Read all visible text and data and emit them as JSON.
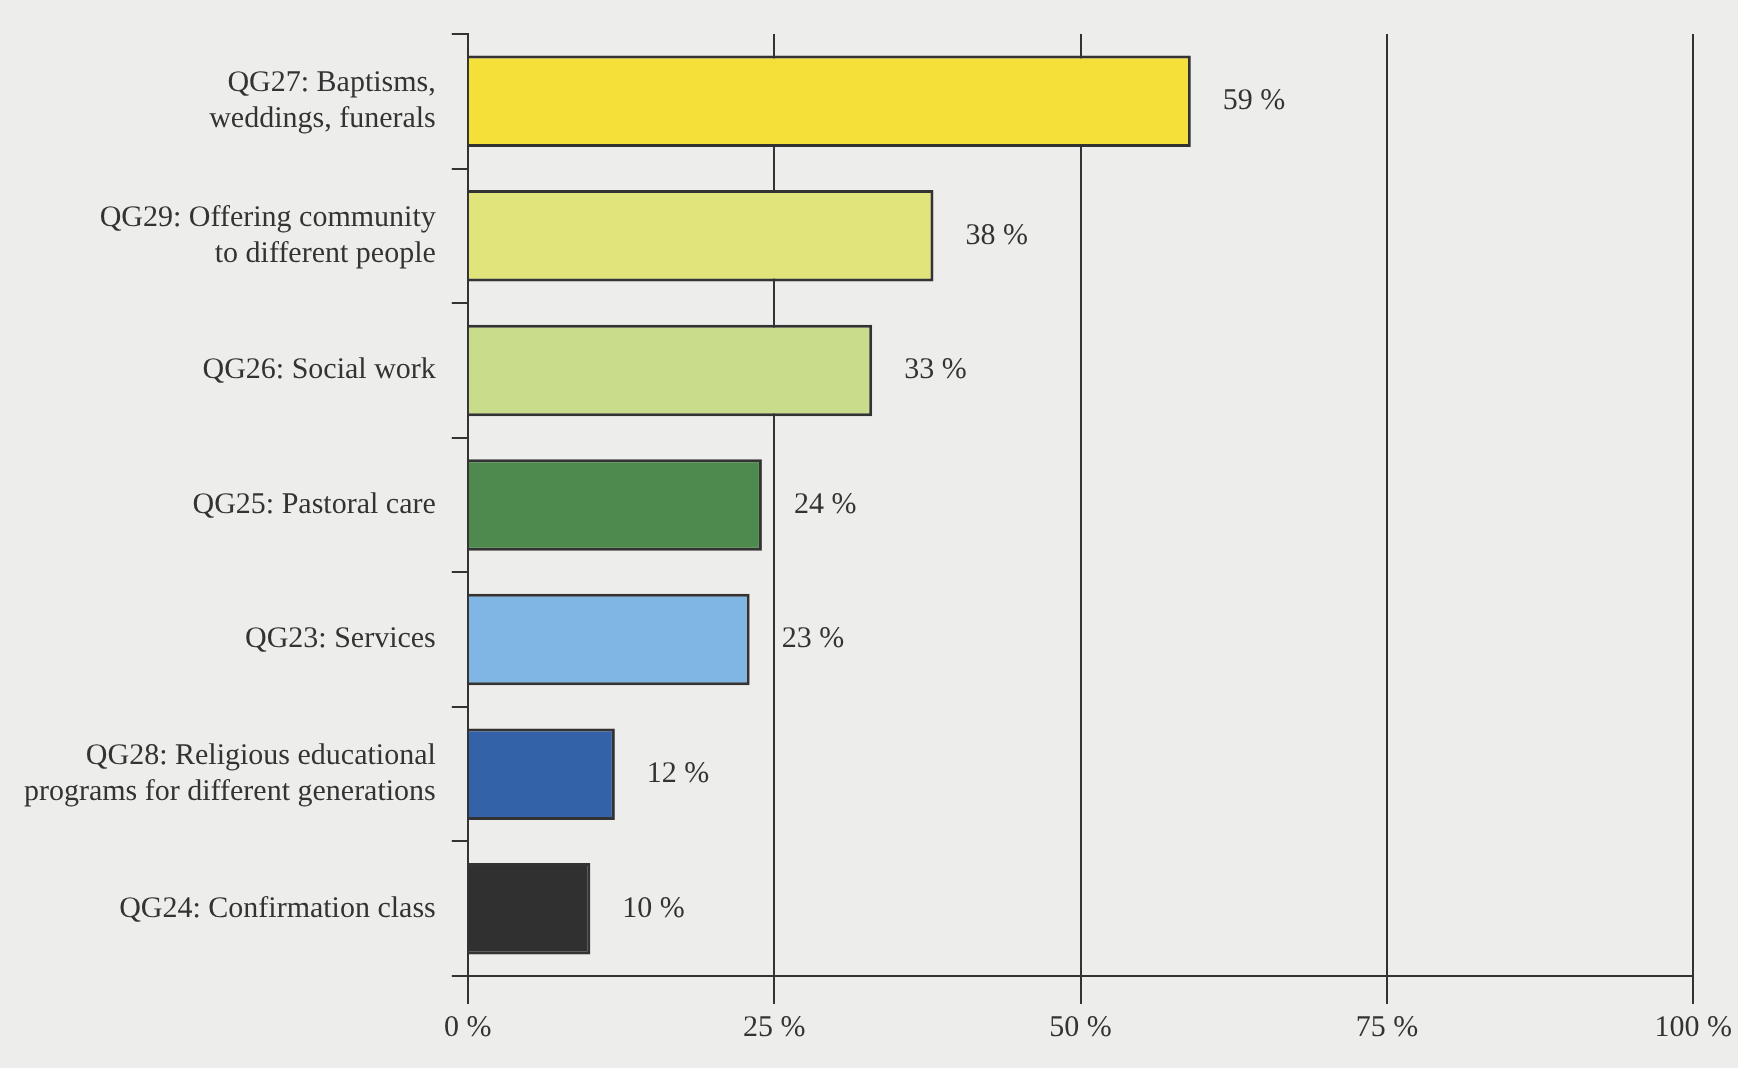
{
  "chart_data": {
    "type": "bar",
    "orientation": "horizontal",
    "categories": [
      "QG27: Baptisms,\nweddings, funerals",
      "QG29: Offering community\nto different people",
      "QG26: Social work",
      "QG25: Pastoral care",
      "QG23: Services",
      "QG28: Religious educational\nprograms for different generations",
      "QG24: Confirmation class"
    ],
    "values": [
      59,
      38,
      33,
      24,
      23,
      12,
      10
    ],
    "colors": [
      "#f5e03a",
      "#e0e47a",
      "#c8dc8c",
      "#4e8a4e",
      "#7fb6e4",
      "#3462a8",
      "#303030"
    ],
    "value_labels": [
      "59 %",
      "38 %",
      "33 %",
      "24 %",
      "23 %",
      "12 %",
      "10 %"
    ],
    "xlim": [
      0,
      100
    ],
    "xticks": [
      {
        "value": 0,
        "label": "0 %"
      },
      {
        "value": 25,
        "label": "25 %"
      },
      {
        "value": 50,
        "label": "50 %"
      },
      {
        "value": 75,
        "label": "75 %"
      },
      {
        "value": 100,
        "label": "100 %"
      }
    ],
    "grid": "x",
    "legend": false
  }
}
